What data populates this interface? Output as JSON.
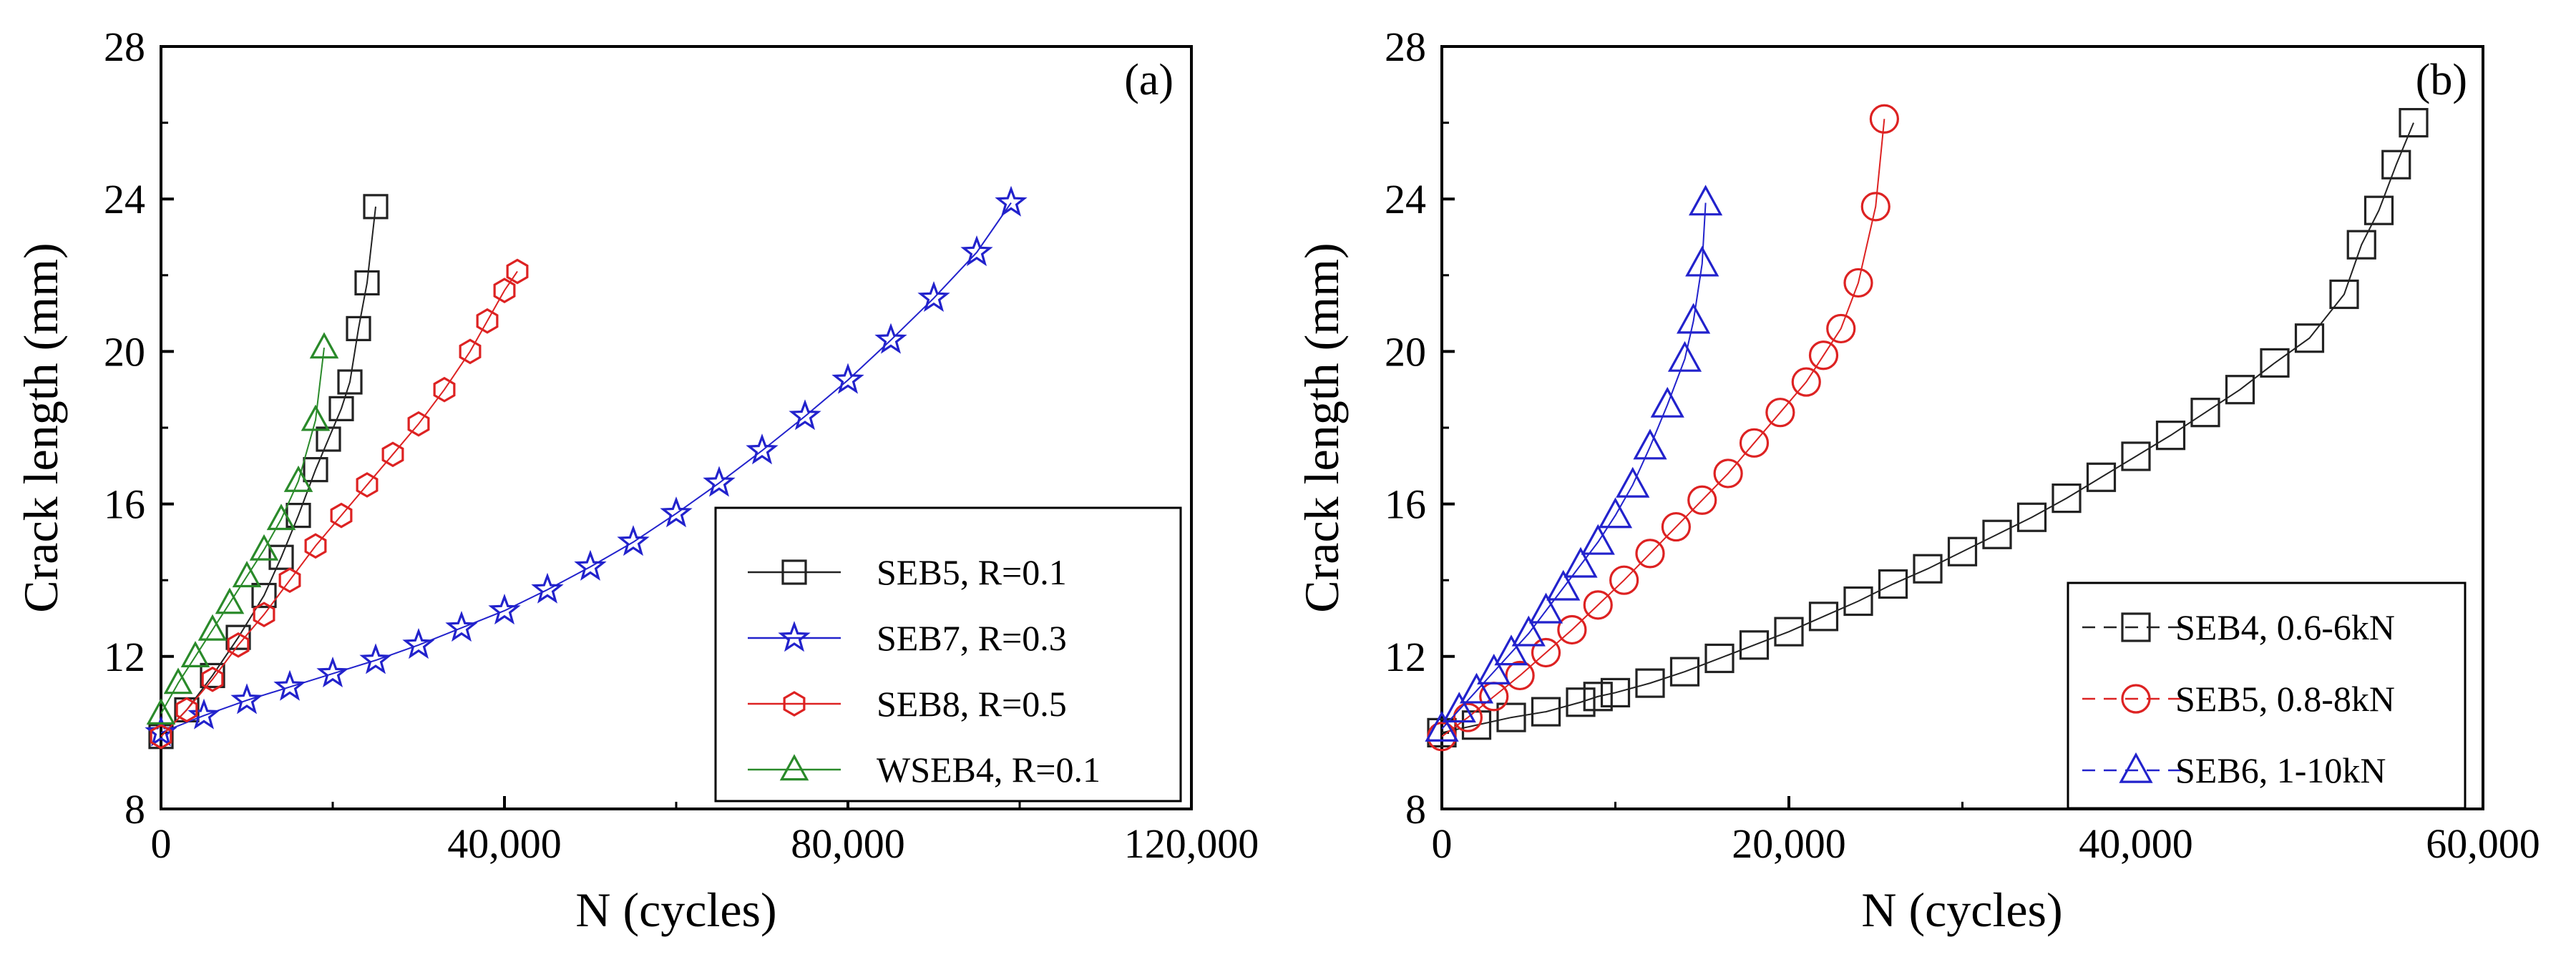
{
  "chart_data": [
    {
      "type": "scatter",
      "panel_label": "(a)",
      "xlabel": "N (cycles)",
      "ylabel": "Crack length (mm)",
      "xlim": [
        0,
        120000
      ],
      "ylim": [
        8,
        28
      ],
      "xticks": [
        0,
        40000,
        80000,
        120000
      ],
      "xtick_labels": [
        "0",
        "40,000",
        "80,000",
        "120,000"
      ],
      "yticks": [
        8,
        12,
        16,
        20,
        24,
        28
      ],
      "ytick_labels": [
        "8",
        "12",
        "16",
        "20",
        "24",
        "28"
      ],
      "grid": false,
      "legend_position": "bottom-right",
      "series": [
        {
          "name": "SEB5, R=0.1",
          "marker": "square",
          "color": "#222222",
          "x": [
            0,
            3000,
            6000,
            9000,
            12000,
            14000,
            16000,
            18000,
            19500,
            21000,
            22000,
            23000,
            24000,
            25000
          ],
          "y": [
            9.9,
            10.6,
            11.5,
            12.5,
            13.6,
            14.6,
            15.7,
            16.9,
            17.7,
            18.5,
            19.2,
            20.6,
            21.8,
            23.8
          ]
        },
        {
          "name": "SEB7, R=0.3",
          "marker": "star",
          "color": "#2222cc",
          "x": [
            0,
            5000,
            10000,
            15000,
            20000,
            25000,
            30000,
            35000,
            40000,
            45000,
            50000,
            55000,
            60000,
            65000,
            70000,
            75000,
            80000,
            85000,
            90000,
            95000,
            99000
          ],
          "y": [
            10.0,
            10.45,
            10.85,
            11.2,
            11.55,
            11.9,
            12.3,
            12.75,
            13.2,
            13.75,
            14.35,
            15.0,
            15.75,
            16.55,
            17.4,
            18.3,
            19.25,
            20.3,
            21.4,
            22.6,
            23.9
          ]
        },
        {
          "name": "SEB8, R=0.5",
          "marker": "hexagon",
          "color": "#dd2222",
          "x": [
            0,
            3000,
            6000,
            9000,
            12000,
            15000,
            18000,
            21000,
            24000,
            27000,
            30000,
            33000,
            36000,
            38000,
            40000,
            41500
          ],
          "y": [
            9.9,
            10.6,
            11.4,
            12.3,
            13.1,
            14.0,
            14.9,
            15.7,
            16.5,
            17.3,
            18.1,
            19.0,
            20.0,
            20.8,
            21.6,
            22.1
          ]
        },
        {
          "name": "WSEB4, R=0.1",
          "marker": "triangle",
          "color": "#2a8a2a",
          "x": [
            0,
            2000,
            4000,
            6000,
            8000,
            10000,
            12000,
            14000,
            16000,
            18000,
            19000
          ],
          "y": [
            10.5,
            11.3,
            12.0,
            12.7,
            13.4,
            14.1,
            14.8,
            15.6,
            16.6,
            18.2,
            20.1
          ]
        }
      ]
    },
    {
      "type": "scatter",
      "panel_label": "(b)",
      "xlabel": "N (cycles)",
      "ylabel": "Crack length (mm)",
      "xlim": [
        0,
        60000
      ],
      "ylim": [
        8,
        28
      ],
      "xticks": [
        0,
        20000,
        40000,
        60000
      ],
      "xtick_labels": [
        "0",
        "20,000",
        "40,000",
        "60,000"
      ],
      "yticks": [
        8,
        12,
        16,
        20,
        24,
        28
      ],
      "ytick_labels": [
        "8",
        "12",
        "16",
        "20",
        "24",
        "28"
      ],
      "grid": false,
      "legend_position": "bottom-right",
      "series": [
        {
          "name": "SEB4, 0.6-6kN",
          "marker": "square",
          "color": "#222222",
          "x": [
            0,
            2000,
            4000,
            6000,
            8000,
            9000,
            10000,
            12000,
            14000,
            16000,
            18000,
            20000,
            22000,
            24000,
            26000,
            28000,
            30000,
            32000,
            34000,
            36000,
            38000,
            40000,
            42000,
            44000,
            46000,
            48000,
            50000,
            52000,
            53000,
            54000,
            55000,
            56000
          ],
          "y": [
            10.0,
            10.2,
            10.4,
            10.55,
            10.8,
            10.95,
            11.05,
            11.3,
            11.6,
            11.95,
            12.3,
            12.65,
            13.05,
            13.45,
            13.9,
            14.3,
            14.75,
            15.2,
            15.65,
            16.15,
            16.7,
            17.25,
            17.8,
            18.4,
            19.0,
            19.7,
            20.35,
            21.5,
            22.8,
            23.7,
            24.9,
            26.0
          ]
        },
        {
          "name": "SEB5, 0.8-8kN",
          "marker": "circle",
          "color": "#dd2222",
          "x": [
            0,
            1500,
            3000,
            4500,
            6000,
            7500,
            9000,
            10500,
            12000,
            13500,
            15000,
            16500,
            18000,
            19500,
            21000,
            22000,
            23000,
            24000,
            25000,
            25500
          ],
          "y": [
            9.9,
            10.4,
            10.95,
            11.5,
            12.1,
            12.7,
            13.35,
            14.0,
            14.7,
            15.4,
            16.1,
            16.8,
            17.6,
            18.4,
            19.2,
            19.9,
            20.6,
            21.8,
            23.8,
            26.1
          ]
        },
        {
          "name": "SEB6, 1-10kN",
          "marker": "triangle",
          "color": "#2222cc",
          "x": [
            0,
            1000,
            2000,
            3000,
            4000,
            5000,
            6000,
            7000,
            8000,
            9000,
            10000,
            11000,
            12000,
            13000,
            14000,
            14500,
            15000,
            15200
          ],
          "y": [
            10.1,
            10.6,
            11.1,
            11.6,
            12.1,
            12.6,
            13.2,
            13.8,
            14.4,
            15.0,
            15.7,
            16.5,
            17.5,
            18.6,
            19.8,
            20.8,
            22.3,
            23.9
          ]
        }
      ]
    }
  ]
}
